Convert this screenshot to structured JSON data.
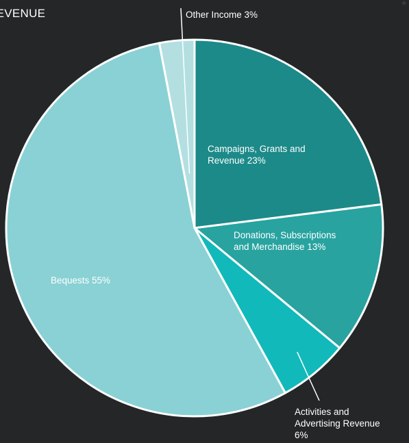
{
  "chart_data": {
    "type": "pie",
    "title": "REVENUE",
    "slices": [
      {
        "label_lines": [
          "Campaigns, Grants and",
          "Revenue  23%"
        ],
        "value": 23,
        "color": "#1c8a89"
      },
      {
        "label_lines": [
          "Donations, Subscriptions",
          "and Merchandise 13%"
        ],
        "value": 13,
        "color": "#28a3a0"
      },
      {
        "label_lines": [
          "Activities and",
          "Advertising Revenue",
          "6%"
        ],
        "value": 6,
        "color": "#12b9ba"
      },
      {
        "label_lines": [
          "Bequests 55%"
        ],
        "value": 55,
        "color": "#89d1d4"
      },
      {
        "label_lines": [
          "Other Income 3%"
        ],
        "value": 3,
        "color": "#b3dfe1"
      }
    ]
  }
}
